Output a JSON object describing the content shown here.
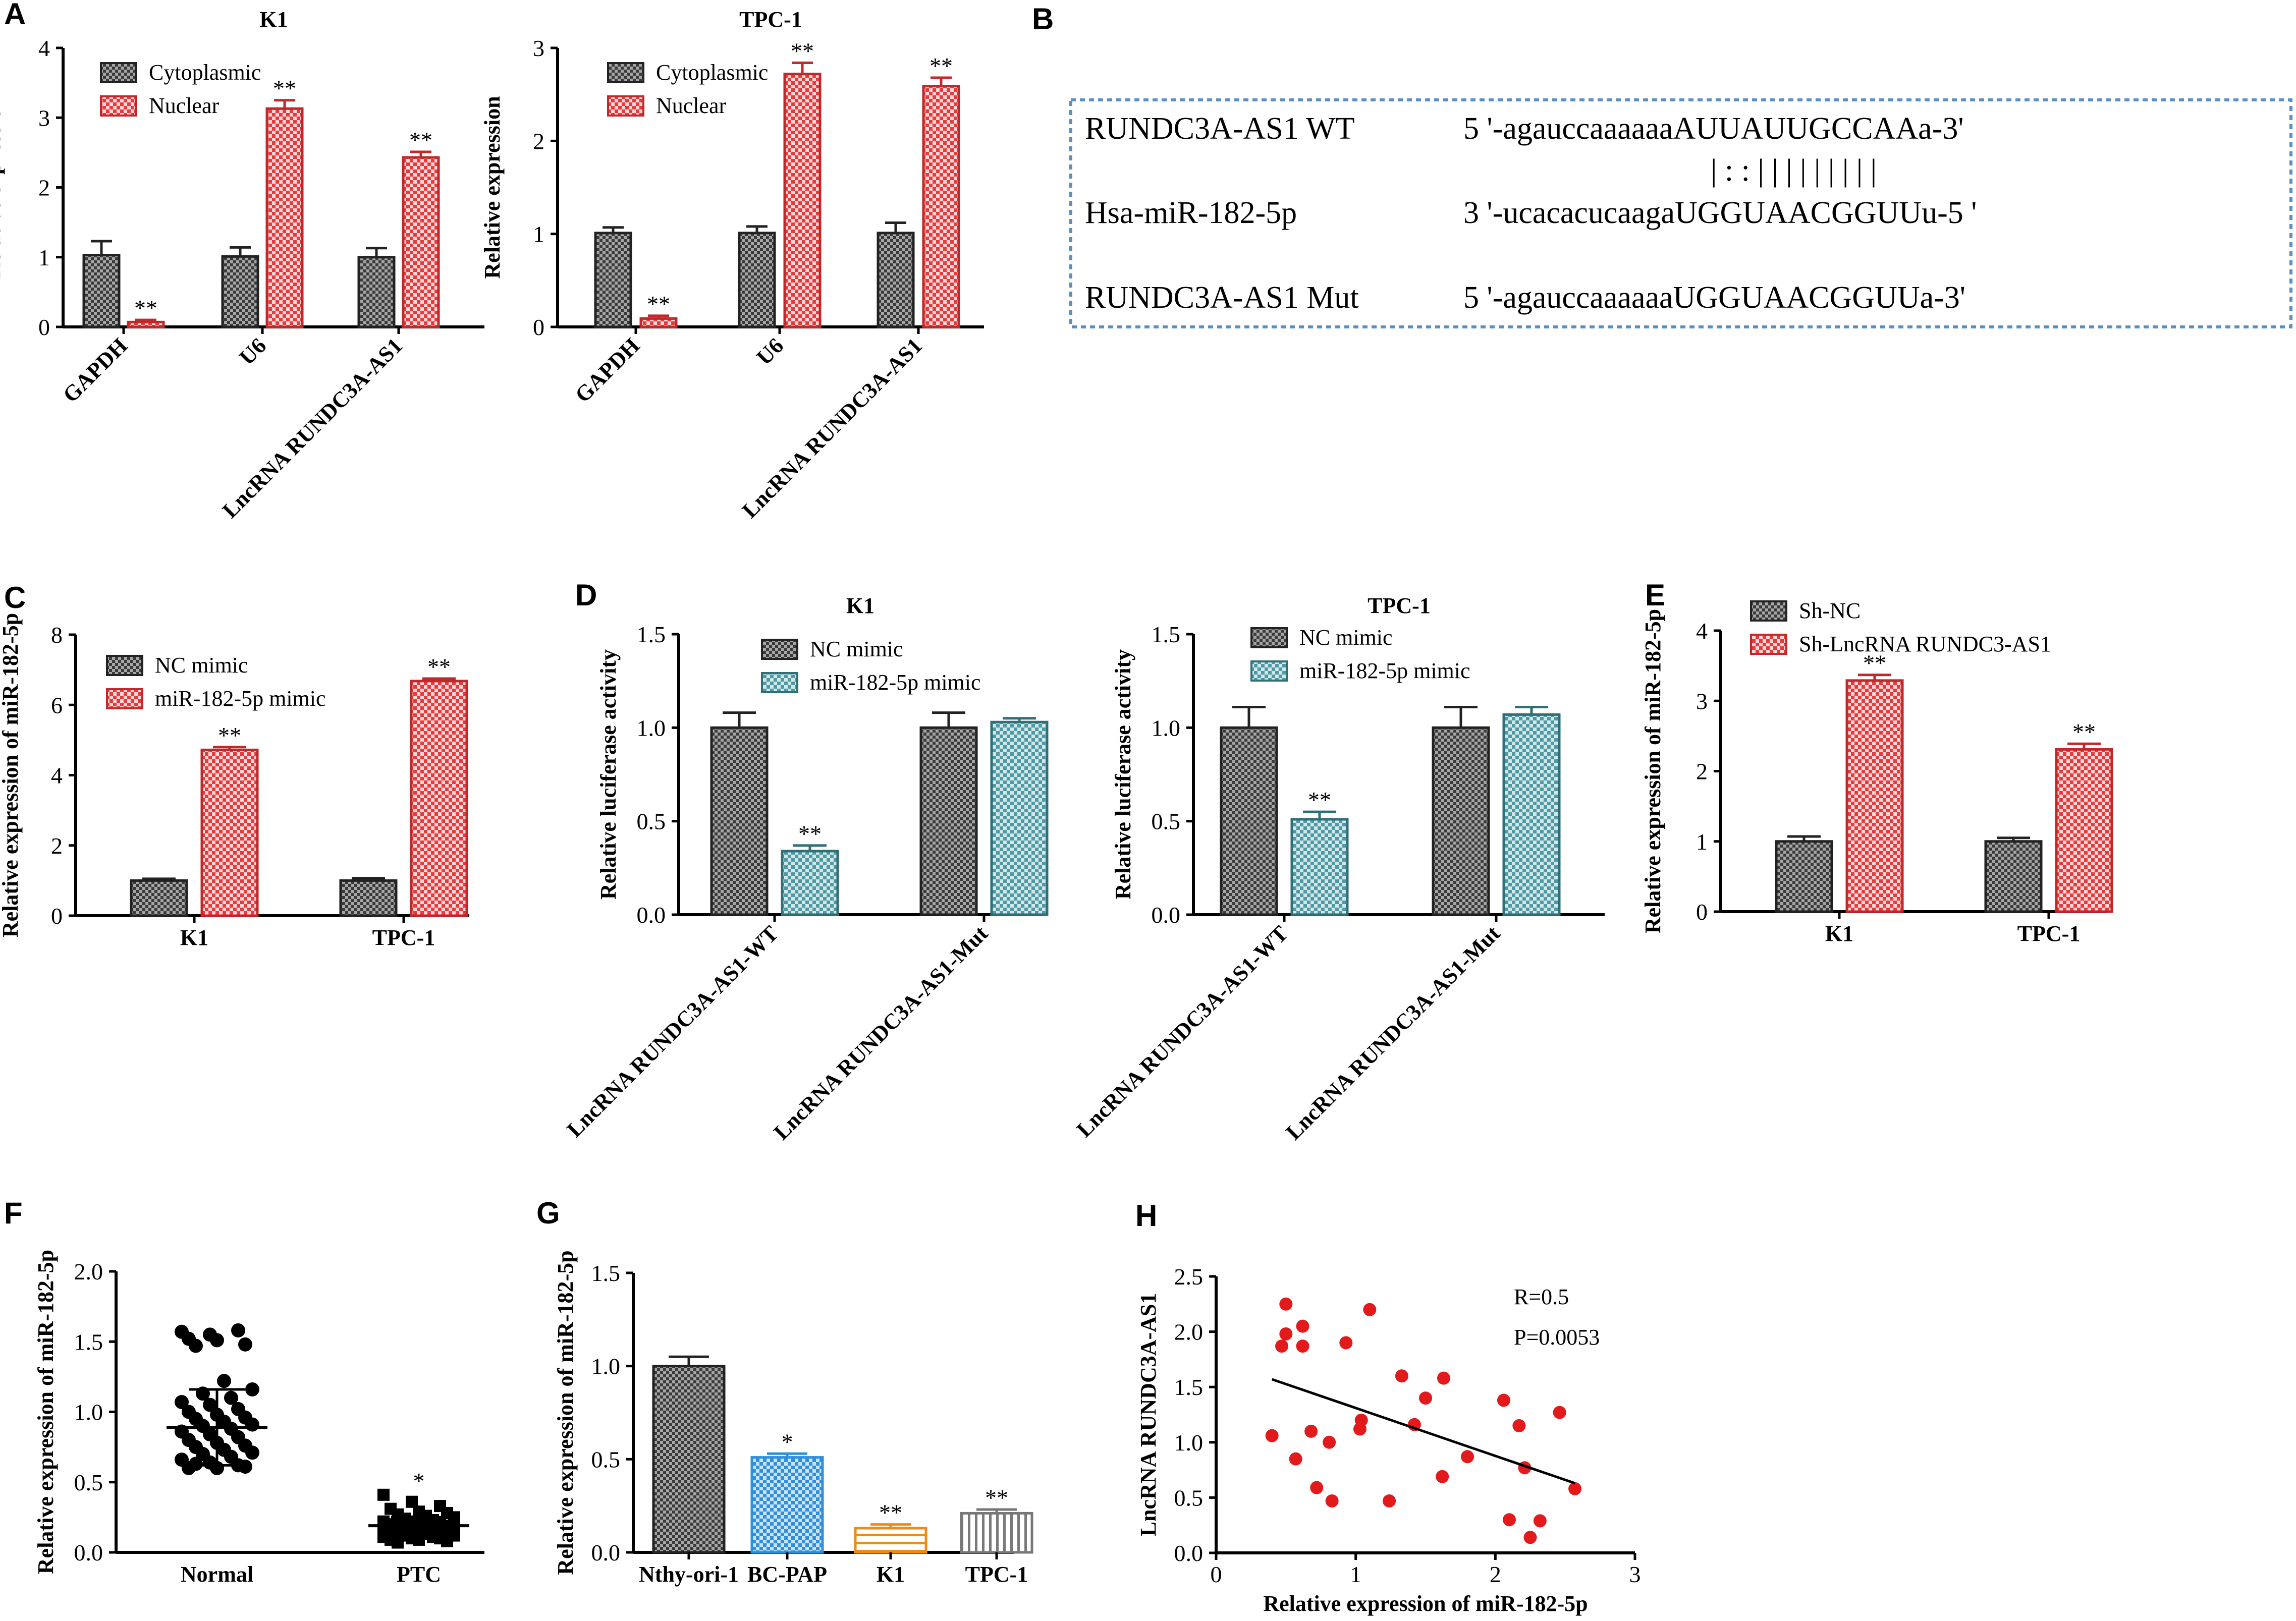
{
  "figure_labels": [
    "A",
    "B",
    "C",
    "D",
    "E",
    "F",
    "G",
    "H"
  ],
  "colors": {
    "dark": "#3a3a3a",
    "red": "#e8393b",
    "teal": "#4e9aa4",
    "blue": "#2f8fdc",
    "orange": "#ef8a17",
    "gray": "#9a9a9a",
    "scatter_red": "#e31a1c",
    "box_border": "#5a8fbf"
  },
  "sequence_box": {
    "rows": [
      {
        "name": "RUNDC3A-AS1 WT",
        "seq": "5 '-agauccaaaaaaAUUAUUGCCAAa-3'"
      },
      {
        "name": "",
        "seq": "| : :  | | | | | | | | |"
      },
      {
        "name": "Hsa-miR-182-5p",
        "seq": "3 '-ucacacucaagaUGGUAACGGUUu-5 '"
      },
      {
        "name": "RUNDC3A-AS1 Mut",
        "seq": "5 '-agauccaaaaaaUGGUAACGGUUa-3'"
      }
    ]
  },
  "chart_data": [
    {
      "id": "A1",
      "panel": "A",
      "type": "bar",
      "title": "K1",
      "xlabel": "",
      "ylabel": "Relative expression",
      "ylim": [
        0,
        4
      ],
      "yticks": [
        0,
        1,
        2,
        3,
        4
      ],
      "categories": [
        "GAPDH",
        "U6",
        "LncRNA RUNDC3A-AS1"
      ],
      "series": [
        {
          "name": "Cytoplasmic",
          "values": [
            1.03,
            1.01,
            1.0
          ],
          "errors": [
            0.2,
            0.13,
            0.13
          ],
          "sig": [
            "",
            "",
            ""
          ]
        },
        {
          "name": "Nuclear",
          "values": [
            0.07,
            3.13,
            2.43
          ],
          "errors": [
            0.03,
            0.12,
            0.08
          ],
          "sig": [
            "**",
            "**",
            "**"
          ]
        }
      ]
    },
    {
      "id": "A2",
      "panel": "A",
      "type": "bar",
      "title": "TPC-1",
      "xlabel": "",
      "ylabel": "Relative expression",
      "ylim": [
        0,
        3
      ],
      "yticks": [
        0,
        1,
        2,
        3
      ],
      "categories": [
        "GAPDH",
        "U6",
        "LncRNA RUNDC3A-AS1"
      ],
      "series": [
        {
          "name": "Cytoplasmic",
          "values": [
            1.01,
            1.01,
            1.01
          ],
          "errors": [
            0.06,
            0.07,
            0.11
          ],
          "sig": [
            "",
            "",
            ""
          ]
        },
        {
          "name": "Nuclear",
          "values": [
            0.09,
            2.72,
            2.59
          ],
          "errors": [
            0.03,
            0.12,
            0.09
          ],
          "sig": [
            "**",
            "**",
            "**"
          ]
        }
      ]
    },
    {
      "id": "C",
      "panel": "C",
      "type": "bar",
      "title": "",
      "xlabel": "",
      "ylabel": "Relative expression of miR-182-5p",
      "ylim": [
        0,
        8
      ],
      "yticks": [
        0,
        2,
        4,
        6,
        8
      ],
      "categories": [
        "K1",
        "TPC-1"
      ],
      "series": [
        {
          "name": "NC mimic",
          "values": [
            1.0,
            1.0
          ],
          "errors": [
            0.05,
            0.07
          ],
          "sig": [
            "",
            ""
          ]
        },
        {
          "name": "miR-182-5p mimic",
          "values": [
            4.72,
            6.68
          ],
          "errors": [
            0.08,
            0.07
          ],
          "sig": [
            "**",
            "**"
          ]
        }
      ]
    },
    {
      "id": "D1",
      "panel": "D",
      "type": "bar",
      "title": "K1",
      "xlabel": "",
      "ylabel": "Relative luciferase activity",
      "ylim": [
        0,
        1.5
      ],
      "yticks": [
        0.0,
        0.5,
        1.0,
        1.5
      ],
      "categories": [
        "LncRNA RUNDC3A-AS1-WT",
        "LncRNA RUNDC3A-AS1-Mut"
      ],
      "series": [
        {
          "name": "NC mimic",
          "values": [
            1.0,
            1.0
          ],
          "errors": [
            0.08,
            0.08
          ],
          "sig": [
            "",
            ""
          ]
        },
        {
          "name": "miR-182-5p mimic",
          "values": [
            0.34,
            1.03
          ],
          "errors": [
            0.03,
            0.02
          ],
          "sig": [
            "**",
            ""
          ]
        }
      ]
    },
    {
      "id": "D2",
      "panel": "D",
      "type": "bar",
      "title": "TPC-1",
      "xlabel": "",
      "ylabel": "Relative luciferase activity",
      "ylim": [
        0,
        1.5
      ],
      "yticks": [
        0.0,
        0.5,
        1.0,
        1.5
      ],
      "categories": [
        "LncRNA RUNDC3A-AS1-WT",
        "LncRNA RUNDC3A-AS1-Mut"
      ],
      "series": [
        {
          "name": "NC mimic",
          "values": [
            1.0,
            1.0
          ],
          "errors": [
            0.11,
            0.11
          ],
          "sig": [
            "",
            ""
          ]
        },
        {
          "name": "miR-182-5p mimic",
          "values": [
            0.51,
            1.07
          ],
          "errors": [
            0.04,
            0.04
          ],
          "sig": [
            "**",
            ""
          ]
        }
      ]
    },
    {
      "id": "E",
      "panel": "E",
      "type": "bar",
      "title": "",
      "xlabel": "",
      "ylabel": "Relative expression of miR-182-5p",
      "ylim": [
        0,
        4
      ],
      "yticks": [
        0,
        1,
        2,
        3,
        4
      ],
      "categories": [
        "K1",
        "TPC-1"
      ],
      "series": [
        {
          "name": "Sh-NC",
          "values": [
            1.0,
            1.0
          ],
          "errors": [
            0.07,
            0.05
          ],
          "sig": [
            "",
            ""
          ]
        },
        {
          "name": "Sh-LncRNA RUNDC3-AS1",
          "values": [
            3.29,
            2.31
          ],
          "errors": [
            0.08,
            0.08
          ],
          "sig": [
            "**",
            "**"
          ]
        }
      ]
    },
    {
      "id": "F",
      "panel": "F",
      "type": "scatter",
      "title": "",
      "xlabel": "",
      "ylabel": "Relative expression of miR-182-5p",
      "ylim": [
        0,
        2.0
      ],
      "yticks": [
        0.0,
        0.5,
        1.0,
        1.5,
        2.0
      ],
      "categories": [
        "Normal",
        "PTC"
      ],
      "groups": [
        {
          "name": "Normal",
          "marker": "circle",
          "mean": 0.89,
          "sd": 0.27,
          "sig": "",
          "values": [
            1.57,
            1.55,
            1.58,
            1.52,
            1.51,
            1.48,
            1.47,
            1.22,
            1.16,
            1.13,
            1.1,
            1.07,
            1.05,
            1.02,
            1.0,
            0.98,
            0.96,
            0.95,
            0.93,
            0.91,
            0.9,
            0.88,
            0.86,
            0.84,
            0.82,
            0.8,
            0.78,
            0.76,
            0.75,
            0.73,
            0.71,
            0.7,
            0.68,
            0.66,
            0.64,
            0.62,
            0.6,
            0.6,
            0.61,
            0.63
          ]
        },
        {
          "name": "PTC",
          "marker": "square",
          "mean": 0.19,
          "sd": 0.06,
          "sig": "*",
          "values": [
            0.41,
            0.36,
            0.33,
            0.31,
            0.29,
            0.28,
            0.27,
            0.26,
            0.25,
            0.24,
            0.23,
            0.22,
            0.22,
            0.21,
            0.2,
            0.2,
            0.19,
            0.19,
            0.18,
            0.18,
            0.17,
            0.17,
            0.16,
            0.16,
            0.15,
            0.15,
            0.14,
            0.14,
            0.13,
            0.13,
            0.12,
            0.12,
            0.11,
            0.11,
            0.1,
            0.1,
            0.09,
            0.09,
            0.08,
            0.07
          ]
        }
      ]
    },
    {
      "id": "G",
      "panel": "G",
      "type": "bar",
      "title": "",
      "xlabel": "",
      "ylabel": "Relative expression of miR-182-5p",
      "ylim": [
        0,
        1.5
      ],
      "yticks": [
        0.0,
        0.5,
        1.0,
        1.5
      ],
      "categories": [
        "Nthy-ori-1",
        "BC-PAP",
        "K1",
        "TPC-1"
      ],
      "values": [
        1.0,
        0.51,
        0.13,
        0.21
      ],
      "errors": [
        0.05,
        0.02,
        0.02,
        0.02
      ],
      "sig": [
        "",
        "*",
        "**",
        "**"
      ]
    },
    {
      "id": "H",
      "panel": "H",
      "type": "scatter",
      "title": "",
      "xlabel": "Relative expression of miR-182-5p",
      "ylabel": "LncRNA RUNDC3A-AS1",
      "xlim": [
        0,
        3
      ],
      "ylim": [
        0,
        2.5
      ],
      "xticks": [
        0,
        1,
        2,
        3
      ],
      "yticks": [
        0.0,
        0.5,
        1.0,
        1.5,
        2.0,
        2.5
      ],
      "annotation": {
        "r": "R=0.5",
        "p": "P=0.0053"
      },
      "fit": {
        "x": [
          0.4,
          2.57
        ],
        "y": [
          1.57,
          0.63
        ]
      },
      "points": [
        {
          "x": 0.5,
          "y": 2.25
        },
        {
          "x": 1.1,
          "y": 2.2
        },
        {
          "x": 0.62,
          "y": 2.05
        },
        {
          "x": 0.5,
          "y": 1.98
        },
        {
          "x": 0.47,
          "y": 1.87
        },
        {
          "x": 0.62,
          "y": 1.87
        },
        {
          "x": 0.93,
          "y": 1.9
        },
        {
          "x": 1.33,
          "y": 1.6
        },
        {
          "x": 1.63,
          "y": 1.58
        },
        {
          "x": 1.5,
          "y": 1.4
        },
        {
          "x": 2.06,
          "y": 1.38
        },
        {
          "x": 2.46,
          "y": 1.27
        },
        {
          "x": 1.42,
          "y": 1.16
        },
        {
          "x": 2.17,
          "y": 1.15
        },
        {
          "x": 1.04,
          "y": 1.2
        },
        {
          "x": 1.03,
          "y": 1.12
        },
        {
          "x": 0.68,
          "y": 1.1
        },
        {
          "x": 0.4,
          "y": 1.06
        },
        {
          "x": 0.81,
          "y": 1.0
        },
        {
          "x": 0.57,
          "y": 0.85
        },
        {
          "x": 1.8,
          "y": 0.87
        },
        {
          "x": 2.21,
          "y": 0.77
        },
        {
          "x": 1.62,
          "y": 0.69
        },
        {
          "x": 0.72,
          "y": 0.59
        },
        {
          "x": 2.57,
          "y": 0.58
        },
        {
          "x": 0.83,
          "y": 0.47
        },
        {
          "x": 1.24,
          "y": 0.47
        },
        {
          "x": 2.1,
          "y": 0.3
        },
        {
          "x": 2.32,
          "y": 0.29
        },
        {
          "x": 2.25,
          "y": 0.14
        }
      ]
    }
  ]
}
